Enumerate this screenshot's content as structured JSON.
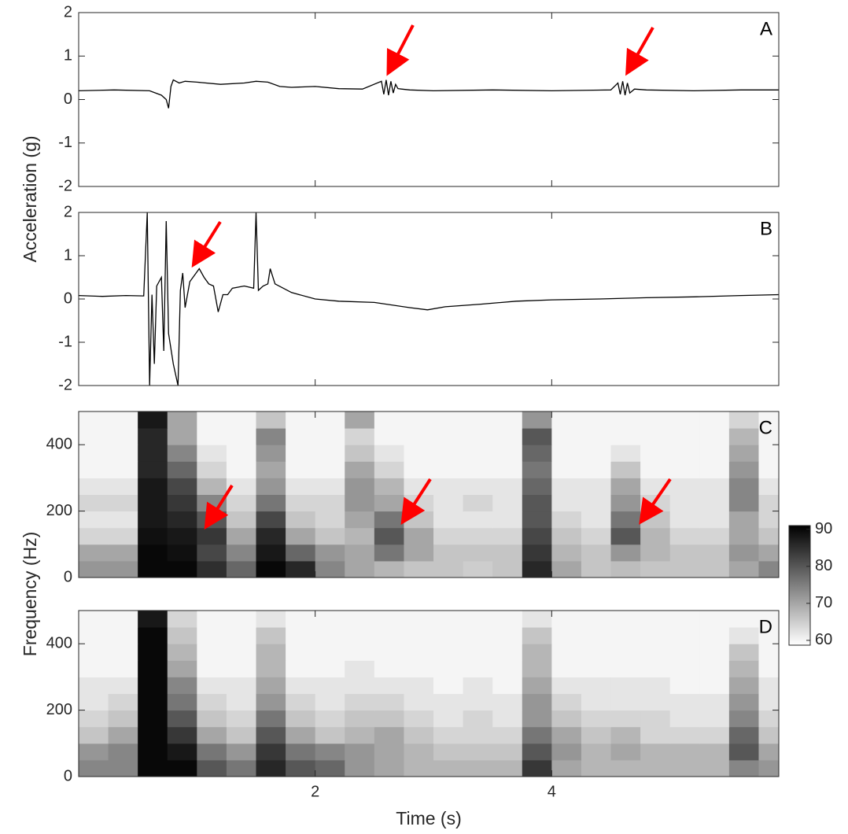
{
  "chart_data": [
    {
      "type": "line",
      "label": "A",
      "ylabel": "Acceleration (g)",
      "color": "#000000",
      "xlim": [
        0,
        5.92
      ],
      "xticks": [
        2,
        4
      ],
      "ylim": [
        -2,
        2
      ],
      "yticks": [
        -2,
        -1,
        0,
        1,
        2
      ],
      "x": [
        0,
        0.3,
        0.6,
        0.7,
        0.74,
        0.76,
        0.78,
        0.8,
        0.85,
        0.9,
        1.0,
        1.2,
        1.4,
        1.5,
        1.6,
        1.7,
        1.8,
        2.0,
        2.2,
        2.4,
        2.56,
        2.58,
        2.6,
        2.62,
        2.64,
        2.66,
        2.68,
        2.7,
        2.8,
        3.0,
        3.5,
        4.0,
        4.5,
        4.56,
        4.58,
        4.6,
        4.62,
        4.64,
        4.66,
        4.7,
        4.8,
        5.2,
        5.6,
        5.92
      ],
      "values": [
        0.2,
        0.22,
        0.2,
        0.1,
        0.0,
        -0.2,
        0.3,
        0.45,
        0.38,
        0.42,
        0.4,
        0.35,
        0.38,
        0.42,
        0.4,
        0.3,
        0.28,
        0.3,
        0.25,
        0.24,
        0.42,
        0.12,
        0.45,
        0.1,
        0.42,
        0.15,
        0.35,
        0.25,
        0.22,
        0.2,
        0.22,
        0.2,
        0.22,
        0.38,
        0.12,
        0.42,
        0.1,
        0.38,
        0.15,
        0.24,
        0.22,
        0.2,
        0.22,
        0.22
      ]
    },
    {
      "type": "line",
      "label": "B",
      "color": "#000000",
      "xlim": [
        0,
        5.92
      ],
      "xticks": [
        2,
        4
      ],
      "ylim": [
        -2,
        2
      ],
      "yticks": [
        -2,
        -1,
        0,
        1,
        2
      ],
      "x": [
        0,
        0.2,
        0.4,
        0.55,
        0.58,
        0.6,
        0.62,
        0.64,
        0.66,
        0.7,
        0.72,
        0.74,
        0.76,
        0.8,
        0.84,
        0.86,
        0.88,
        0.9,
        0.94,
        0.98,
        1.02,
        1.06,
        1.1,
        1.14,
        1.18,
        1.22,
        1.26,
        1.3,
        1.4,
        1.48,
        1.5,
        1.52,
        1.56,
        1.6,
        1.62,
        1.66,
        1.8,
        2.0,
        2.2,
        2.5,
        2.8,
        2.95,
        3.1,
        3.4,
        3.7,
        4.0,
        4.4,
        4.8,
        5.2,
        5.6,
        5.92
      ],
      "values": [
        0.08,
        0.06,
        0.08,
        0.07,
        2,
        -2,
        0.1,
        -1.5,
        0.3,
        0.5,
        -1.2,
        1.8,
        -0.8,
        -1.5,
        -2,
        0.2,
        0.6,
        -0.2,
        0.4,
        0.55,
        0.7,
        0.5,
        0.35,
        0.3,
        -0.3,
        0.1,
        0.1,
        0.25,
        0.3,
        0.25,
        2,
        0.2,
        0.3,
        0.35,
        0.7,
        0.35,
        0.15,
        0.0,
        -0.05,
        -0.08,
        -0.2,
        -0.25,
        -0.18,
        -0.12,
        -0.05,
        -0.02,
        0.0,
        0.03,
        0.05,
        0.08,
        0.1
      ]
    },
    {
      "type": "heatmap",
      "label": "C",
      "ylabel": "Frequency (Hz)",
      "xlim": [
        0,
        5.92
      ],
      "xticks": [
        2,
        4
      ],
      "ylim": [
        0,
        500
      ],
      "yticks": [
        0,
        200,
        400
      ],
      "colorbar": {
        "lim": [
          58.7,
          91
        ],
        "ticks": [
          60,
          70,
          80,
          90
        ]
      },
      "x": [
        0.125,
        0.375,
        0.625,
        0.875,
        1.125,
        1.375,
        1.625,
        1.875,
        2.125,
        2.375,
        2.625,
        2.875,
        3.125,
        3.375,
        3.625,
        3.875,
        4.125,
        4.375,
        4.625,
        4.875,
        5.125,
        5.375,
        5.625,
        5.875
      ],
      "y": [
        25,
        75,
        125,
        175,
        225,
        275,
        325,
        375,
        425,
        475
      ],
      "z": [
        [
          72,
          72,
          90,
          90,
          85,
          78,
          90,
          86,
          74,
          70,
          68,
          66,
          66,
          65,
          66,
          86,
          70,
          66,
          67,
          66,
          66,
          66,
          70,
          74
        ],
        [
          70,
          70,
          90,
          89,
          82,
          74,
          88,
          78,
          72,
          70,
          76,
          70,
          66,
          66,
          66,
          84,
          68,
          66,
          72,
          68,
          66,
          66,
          72,
          70
        ],
        [
          64,
          64,
          89,
          88,
          84,
          70,
          86,
          70,
          66,
          68,
          80,
          70,
          64,
          64,
          64,
          82,
          66,
          64,
          80,
          68,
          64,
          64,
          70,
          66
        ],
        [
          62,
          62,
          88,
          86,
          80,
          66,
          82,
          66,
          64,
          70,
          76,
          66,
          62,
          62,
          62,
          80,
          64,
          62,
          76,
          66,
          62,
          62,
          70,
          64
        ],
        [
          64,
          64,
          88,
          84,
          74,
          64,
          76,
          64,
          64,
          72,
          70,
          64,
          62,
          64,
          62,
          80,
          62,
          62,
          72,
          64,
          62,
          62,
          74,
          64
        ],
        [
          62,
          62,
          88,
          82,
          68,
          62,
          72,
          62,
          62,
          72,
          68,
          62,
          62,
          62,
          62,
          78,
          62,
          62,
          70,
          62,
          62,
          62,
          74,
          62
        ],
        [
          60,
          60,
          86,
          78,
          64,
          60,
          70,
          60,
          60,
          70,
          64,
          60,
          60,
          60,
          60,
          76,
          60,
          60,
          66,
          60,
          60,
          60,
          72,
          60
        ],
        [
          60,
          60,
          86,
          74,
          62,
          60,
          72,
          60,
          60,
          66,
          62,
          60,
          60,
          60,
          60,
          78,
          60,
          60,
          62,
          60,
          60,
          60,
          70,
          60
        ],
        [
          60,
          60,
          86,
          70,
          60,
          60,
          74,
          60,
          60,
          64,
          60,
          60,
          60,
          60,
          60,
          80,
          60,
          60,
          60,
          60,
          60,
          60,
          68,
          60
        ],
        [
          60,
          60,
          88,
          70,
          60,
          60,
          66,
          60,
          60,
          70,
          60,
          60,
          60,
          60,
          60,
          72,
          60,
          60,
          60,
          60,
          60,
          60,
          64,
          60
        ]
      ]
    },
    {
      "type": "heatmap",
      "label": "D",
      "xlabel": "Time (s)",
      "xlim": [
        0,
        5.92
      ],
      "xticks": [
        2,
        4
      ],
      "ylim": [
        0,
        500
      ],
      "yticks": [
        0,
        200,
        400
      ],
      "x": [
        0.125,
        0.375,
        0.625,
        0.875,
        1.125,
        1.375,
        1.625,
        1.875,
        2.125,
        2.375,
        2.625,
        2.875,
        3.125,
        3.375,
        3.625,
        3.875,
        4.125,
        4.375,
        4.625,
        4.875,
        5.125,
        5.375,
        5.625,
        5.875
      ],
      "y": [
        25,
        75,
        125,
        175,
        225,
        275,
        325,
        375,
        425,
        475
      ],
      "z": [
        [
          74,
          74,
          90,
          90,
          80,
          76,
          86,
          80,
          78,
          72,
          70,
          68,
          68,
          68,
          68,
          84,
          70,
          68,
          68,
          68,
          68,
          68,
          74,
          72
        ],
        [
          72,
          74,
          90,
          88,
          76,
          72,
          84,
          76,
          74,
          72,
          70,
          68,
          66,
          66,
          66,
          80,
          72,
          68,
          70,
          68,
          68,
          68,
          80,
          70
        ],
        [
          66,
          70,
          90,
          84,
          70,
          66,
          80,
          70,
          66,
          68,
          70,
          66,
          64,
          64,
          64,
          76,
          70,
          66,
          68,
          64,
          64,
          64,
          78,
          66
        ],
        [
          64,
          66,
          90,
          80,
          66,
          64,
          76,
          66,
          64,
          66,
          66,
          64,
          62,
          64,
          62,
          72,
          66,
          64,
          64,
          64,
          62,
          62,
          74,
          64
        ],
        [
          62,
          64,
          90,
          76,
          64,
          62,
          72,
          64,
          62,
          64,
          64,
          62,
          62,
          62,
          62,
          72,
          64,
          62,
          62,
          62,
          62,
          62,
          72,
          62
        ],
        [
          62,
          62,
          90,
          74,
          62,
          62,
          70,
          62,
          62,
          62,
          62,
          62,
          60,
          62,
          60,
          70,
          62,
          62,
          62,
          62,
          60,
          60,
          70,
          62
        ],
        [
          60,
          60,
          90,
          70,
          60,
          60,
          68,
          60,
          60,
          62,
          60,
          60,
          60,
          60,
          60,
          68,
          60,
          60,
          60,
          60,
          60,
          60,
          68,
          60
        ],
        [
          60,
          60,
          90,
          68,
          60,
          60,
          68,
          60,
          60,
          60,
          60,
          60,
          60,
          60,
          60,
          68,
          60,
          60,
          60,
          60,
          60,
          60,
          66,
          60
        ],
        [
          60,
          60,
          90,
          66,
          60,
          60,
          66,
          60,
          60,
          60,
          60,
          60,
          60,
          60,
          60,
          66,
          60,
          60,
          60,
          60,
          60,
          60,
          62,
          60
        ],
        [
          60,
          60,
          88,
          64,
          60,
          60,
          62,
          60,
          60,
          60,
          60,
          60,
          60,
          60,
          60,
          62,
          60,
          60,
          60,
          60,
          60,
          60,
          60,
          60
        ]
      ]
    }
  ]
}
